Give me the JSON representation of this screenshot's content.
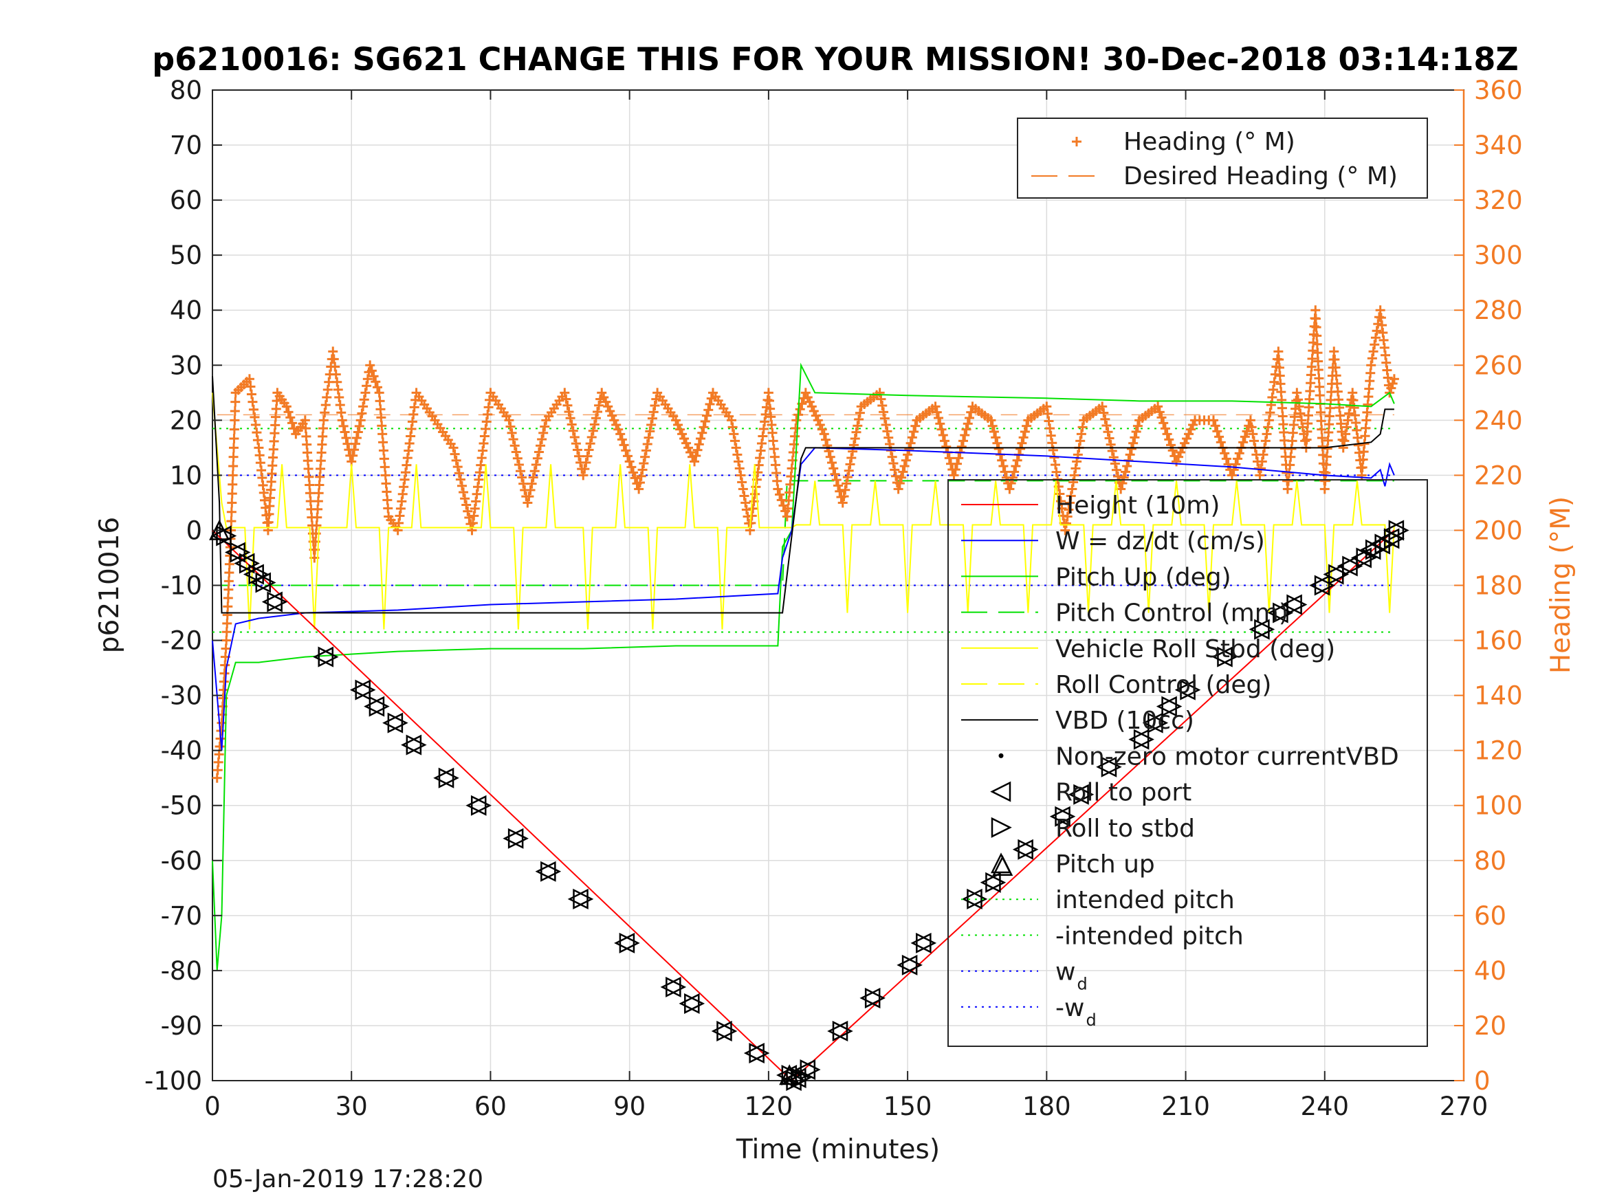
{
  "chart_data": {
    "type": "line",
    "title": "p6210016: SG621 CHANGE THIS FOR YOUR MISSION! 30-Dec-2018 03:14:18Z",
    "xlabel": "Time (minutes)",
    "ylabel": "p6210016",
    "y2label": "Heading (°M)",
    "timestamp": "05-Jan-2019 17:28:20",
    "xlim": [
      0,
      270
    ],
    "ylim": [
      -100,
      80
    ],
    "y2lim": [
      0,
      360
    ],
    "x_ticks": [
      "0",
      "30",
      "60",
      "90",
      "120",
      "150",
      "180",
      "210",
      "240",
      "270"
    ],
    "y_ticks": [
      "80",
      "70",
      "60",
      "50",
      "40",
      "30",
      "20",
      "10",
      "0",
      "-10",
      "-20",
      "-30",
      "-40",
      "-50",
      "-60",
      "-70",
      "-80",
      "-90",
      "-100"
    ],
    "y2_ticks": [
      "360",
      "340",
      "320",
      "300",
      "280",
      "260",
      "240",
      "220",
      "200",
      "180",
      "160",
      "140",
      "120",
      "100",
      "80",
      "60",
      "40",
      "20",
      "0"
    ],
    "grid": true,
    "legend_left": {
      "placement": "top-right",
      "entries": [
        "Heading (° M)",
        "Desired Heading (° M)"
      ]
    },
    "legend_right": {
      "placement": "right",
      "entries": [
        "Height (10m)",
        "W = dz/dt (cm/s)",
        "Pitch Up (deg)",
        "Pitch Control (mm)",
        "Vehicle Roll Stbd (deg)",
        "Roll Control (deg)",
        "VBD (10cc)",
        "Non-zero motor currentVBD",
        "Roll to port",
        "Roll to stbd",
        "Pitch up",
        "intended pitch",
        "-intended pitch",
        "w",
        "-w"
      ],
      "subscripts": {
        "w": "d",
        "-w": "d"
      }
    },
    "colors": {
      "height": "#ff0000",
      "w": "#0000ff",
      "pitch": "#00e000",
      "roll": "#ffff00",
      "vbd": "#000000",
      "heading": "#f27a24"
    },
    "series": [
      {
        "name": "Height (10m)",
        "x": [
          0,
          125,
          255
        ],
        "y": [
          0,
          -100,
          0
        ]
      },
      {
        "name": "W = dz/dt (cm/s)",
        "x": [
          0,
          1,
          2,
          3,
          5,
          10,
          20,
          40,
          60,
          80,
          100,
          122,
          123,
          125,
          127,
          130,
          150,
          180,
          200,
          220,
          240,
          250,
          252,
          253,
          254,
          255
        ],
        "y": [
          -20,
          -30,
          -40,
          -25,
          -17,
          -16,
          -15,
          -14.5,
          -13.5,
          -13,
          -12.5,
          -11.5,
          -5,
          0,
          12,
          15,
          14.5,
          13.5,
          12.5,
          11.5,
          10,
          9.5,
          11,
          8,
          12,
          10
        ]
      },
      {
        "name": "Pitch Up (deg)",
        "x": [
          0,
          1,
          2,
          3,
          5,
          10,
          20,
          40,
          60,
          80,
          100,
          122,
          123,
          125,
          127,
          130,
          150,
          180,
          200,
          220,
          240,
          250,
          254,
          255
        ],
        "y": [
          -60,
          -80,
          -70,
          -30,
          -24,
          -24,
          -23,
          -22,
          -21.5,
          -21.5,
          -21,
          -21,
          -3,
          0,
          30,
          25,
          24.5,
          24,
          23.5,
          23.5,
          23,
          22.5,
          25,
          23
        ]
      },
      {
        "name": "Pitch Control (mm)",
        "x": [
          0,
          123,
          124,
          255
        ],
        "y": [
          -10,
          -10,
          9,
          9
        ]
      },
      {
        "name": "intended pitch",
        "y": 18.5
      },
      {
        "name": "-intended pitch",
        "y": -18.5
      },
      {
        "name": "w",
        "y": 10
      },
      {
        "name": "-w",
        "y": -10
      },
      {
        "name": "VBD (10cc)",
        "x": [
          0,
          1.5,
          2,
          122,
          123,
          127,
          128,
          130,
          200,
          240,
          245,
          250,
          252,
          253,
          255
        ],
        "y": [
          28,
          5,
          -15,
          -15,
          -15,
          13,
          15,
          15,
          15,
          15,
          15.5,
          16,
          17.5,
          22,
          22
        ]
      },
      {
        "name": "Roll to port",
        "x": [
          2,
          5,
          7,
          9,
          10.5,
          13,
          24,
          32,
          35,
          39,
          43,
          50,
          57,
          65,
          72,
          79,
          89,
          99,
          103,
          110,
          117,
          124,
          125
        ],
        "y": [
          -1,
          -4,
          -6,
          -8,
          -9.5,
          -13,
          -23,
          -29,
          -32,
          -35,
          -39,
          -45,
          -50,
          -56,
          -62,
          -67,
          -75,
          -83,
          -86,
          -91,
          -95,
          -99,
          -100
        ]
      },
      {
        "name": "Roll to stbd",
        "x": [
          126,
          128,
          135,
          142,
          150,
          153,
          164,
          168,
          175,
          183,
          187,
          193,
          200,
          203,
          206,
          210,
          218,
          226,
          230,
          233,
          239,
          242,
          245,
          248,
          250,
          252,
          254,
          255
        ],
        "y": [
          -99.5,
          -98,
          -91,
          -85,
          -79,
          -75,
          -67,
          -64,
          -58,
          -52,
          -48,
          -43,
          -38,
          -35,
          -32,
          -29,
          -23,
          -18,
          -15,
          -13.5,
          -10,
          -8,
          -6.5,
          -5,
          -3.5,
          -2.5,
          -1.5,
          0
        ]
      },
      {
        "name": "Pitch up",
        "x": [
          1.5,
          124.5,
          170.5
        ],
        "y": [
          0,
          -99,
          -61
        ]
      },
      {
        "name": "Heading (° M)",
        "x": [
          1,
          2,
          3,
          4,
          5,
          8,
          10,
          12,
          14,
          16,
          18,
          20,
          22,
          24,
          26,
          28,
          30,
          32,
          34,
          36,
          38,
          40,
          44,
          48,
          52,
          56,
          60,
          64,
          68,
          72,
          76,
          80,
          84,
          88,
          92,
          96,
          100,
          104,
          108,
          112,
          116,
          120,
          122,
          124,
          126,
          128,
          132,
          136,
          140,
          144,
          148,
          152,
          156,
          160,
          164,
          168,
          172,
          176,
          180,
          184,
          188,
          192,
          196,
          200,
          204,
          208,
          212,
          216,
          220,
          224,
          226,
          228,
          230,
          232,
          234,
          236,
          238,
          240,
          242,
          244,
          246,
          248,
          250,
          252,
          254,
          255
        ],
        "y": [
          110,
          130,
          160,
          200,
          250,
          255,
          230,
          200,
          250,
          245,
          235,
          240,
          190,
          240,
          265,
          240,
          225,
          240,
          260,
          250,
          205,
          200,
          250,
          240,
          230,
          200,
          250,
          240,
          210,
          240,
          250,
          220,
          250,
          235,
          215,
          250,
          240,
          225,
          250,
          240,
          200,
          250,
          215,
          205,
          240,
          250,
          235,
          210,
          245,
          250,
          215,
          240,
          245,
          220,
          245,
          240,
          215,
          240,
          245,
          200,
          240,
          245,
          215,
          240,
          245,
          225,
          240,
          240,
          220,
          240,
          220,
          240,
          265,
          215,
          250,
          230,
          280,
          215,
          265,
          230,
          250,
          220,
          260,
          280,
          250,
          255
        ]
      },
      {
        "name": "Desired Heading (° M)",
        "y": 242
      }
    ]
  }
}
